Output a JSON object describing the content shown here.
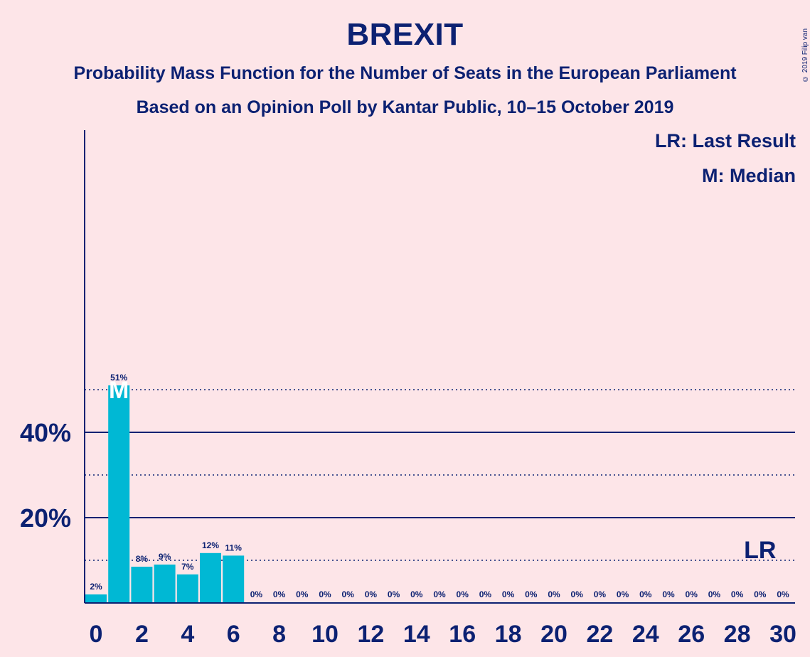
{
  "header": {
    "title": "BREXIT",
    "subtitle1": "Probability Mass Function for the Number of Seats in the European Parliament",
    "subtitle2": "Based on an Opinion Poll by Kantar Public, 10–15 October 2019",
    "copyright": "© 2019 Filip van Laenen"
  },
  "legend": {
    "last_result": "LR: Last Result",
    "median": "M: Median"
  },
  "colors": {
    "background": "#fde5e8",
    "bar": "#00b8d4",
    "text": "#0c2172"
  },
  "chart_data": {
    "type": "bar",
    "x": [
      0,
      1,
      2,
      3,
      4,
      5,
      6,
      7,
      8,
      9,
      10,
      11,
      12,
      13,
      14,
      15,
      16,
      17,
      18,
      19,
      20,
      21,
      22,
      23,
      24,
      25,
      26,
      27,
      28,
      29,
      30
    ],
    "values": [
      2,
      51,
      8.5,
      9,
      6.7,
      11.7,
      11.1,
      0,
      0,
      0,
      0,
      0,
      0,
      0,
      0,
      0,
      0,
      0,
      0,
      0,
      0,
      0,
      0,
      0,
      0,
      0,
      0,
      0,
      0,
      0,
      0
    ],
    "value_labels": [
      "2%",
      "51%",
      "8%",
      "9%",
      "7%",
      "12%",
      "11%",
      "0%",
      "0%",
      "0%",
      "0%",
      "0%",
      "0%",
      "0%",
      "0%",
      "0%",
      "0%",
      "0%",
      "0%",
      "0%",
      "0%",
      "0%",
      "0%",
      "0%",
      "0%",
      "0%",
      "0%",
      "0%",
      "0%",
      "0%",
      "0%"
    ],
    "x_tick_labels": [
      "0",
      "2",
      "4",
      "6",
      "8",
      "10",
      "12",
      "14",
      "16",
      "18",
      "20",
      "22",
      "24",
      "26",
      "28",
      "30"
    ],
    "y_tick_labels": [
      "20%",
      "40%"
    ],
    "ylim": [
      0,
      55
    ],
    "median_seat": 1,
    "median_label": "M",
    "last_result_seat": 29,
    "last_result_label": "LR"
  }
}
